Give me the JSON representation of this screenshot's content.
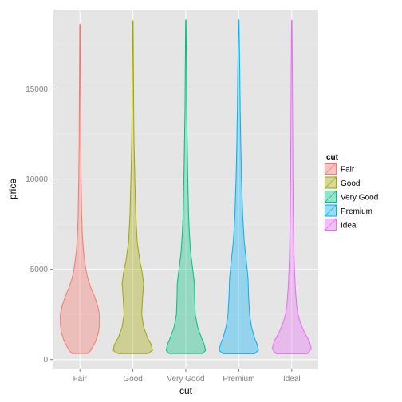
{
  "chart_data": {
    "type": "violin",
    "xlabel": "cut",
    "ylabel": "price",
    "categories": [
      "Fair",
      "Good",
      "Very Good",
      "Premium",
      "Ideal"
    ],
    "ylim": [
      -500,
      19400
    ],
    "yticks": [
      0,
      5000,
      10000,
      15000
    ],
    "grid": true,
    "legend_position": "right",
    "legend": {
      "title": "cut",
      "entries": [
        "Fair",
        "Good",
        "Very Good",
        "Premium",
        "Ideal"
      ]
    },
    "series": [
      {
        "name": "Fair",
        "color": "#F8766D",
        "price_range": [
          337,
          18574
        ],
        "density_profile": [
          [
            337,
            0.4
          ],
          [
            500,
            0.55
          ],
          [
            1000,
            0.8
          ],
          [
            1500,
            0.95
          ],
          [
            2000,
            1.0
          ],
          [
            2500,
            1.0
          ],
          [
            3000,
            0.9
          ],
          [
            3500,
            0.75
          ],
          [
            4000,
            0.55
          ],
          [
            4500,
            0.4
          ],
          [
            5000,
            0.3
          ],
          [
            6000,
            0.18
          ],
          [
            7000,
            0.12
          ],
          [
            8000,
            0.09
          ],
          [
            10000,
            0.06
          ],
          [
            12000,
            0.04
          ],
          [
            14000,
            0.03
          ],
          [
            16000,
            0.02
          ],
          [
            18574,
            0.01
          ]
        ]
      },
      {
        "name": "Good",
        "color": "#A3A500",
        "price_range": [
          327,
          18788
        ],
        "density_profile": [
          [
            327,
            0.75
          ],
          [
            500,
            1.0
          ],
          [
            800,
            0.95
          ],
          [
            1200,
            0.75
          ],
          [
            1800,
            0.55
          ],
          [
            2500,
            0.45
          ],
          [
            3500,
            0.5
          ],
          [
            4200,
            0.55
          ],
          [
            4800,
            0.48
          ],
          [
            5500,
            0.35
          ],
          [
            6500,
            0.22
          ],
          [
            8000,
            0.15
          ],
          [
            10000,
            0.1
          ],
          [
            12000,
            0.06
          ],
          [
            14000,
            0.04
          ],
          [
            16000,
            0.03
          ],
          [
            18788,
            0.01
          ]
        ]
      },
      {
        "name": "Very Good",
        "color": "#00BF7D",
        "price_range": [
          336,
          18818
        ],
        "density_profile": [
          [
            336,
            0.85
          ],
          [
            500,
            1.0
          ],
          [
            800,
            0.95
          ],
          [
            1200,
            0.8
          ],
          [
            1800,
            0.6
          ],
          [
            2500,
            0.48
          ],
          [
            3500,
            0.45
          ],
          [
            4200,
            0.44
          ],
          [
            5000,
            0.35
          ],
          [
            6000,
            0.24
          ],
          [
            7000,
            0.18
          ],
          [
            8000,
            0.14
          ],
          [
            10000,
            0.1
          ],
          [
            12000,
            0.07
          ],
          [
            14000,
            0.04
          ],
          [
            16000,
            0.03
          ],
          [
            18818,
            0.01
          ]
        ]
      },
      {
        "name": "Premium",
        "color": "#00B0F6",
        "price_range": [
          326,
          18823
        ],
        "density_profile": [
          [
            326,
            0.8
          ],
          [
            500,
            1.0
          ],
          [
            800,
            0.95
          ],
          [
            1200,
            0.8
          ],
          [
            1800,
            0.65
          ],
          [
            2500,
            0.55
          ],
          [
            3500,
            0.5
          ],
          [
            4500,
            0.47
          ],
          [
            5500,
            0.38
          ],
          [
            6500,
            0.28
          ],
          [
            8000,
            0.2
          ],
          [
            10000,
            0.14
          ],
          [
            12000,
            0.1
          ],
          [
            14000,
            0.07
          ],
          [
            16000,
            0.05
          ],
          [
            18823,
            0.01
          ]
        ]
      },
      {
        "name": "Ideal",
        "color": "#E76BF3",
        "price_range": [
          326,
          18806
        ],
        "density_profile": [
          [
            326,
            0.8
          ],
          [
            600,
            1.0
          ],
          [
            1000,
            0.9
          ],
          [
            1500,
            0.65
          ],
          [
            2000,
            0.45
          ],
          [
            2500,
            0.32
          ],
          [
            3000,
            0.25
          ],
          [
            4000,
            0.18
          ],
          [
            5000,
            0.14
          ],
          [
            6000,
            0.11
          ],
          [
            8000,
            0.08
          ],
          [
            10000,
            0.06
          ],
          [
            12000,
            0.05
          ],
          [
            14000,
            0.04
          ],
          [
            16000,
            0.03
          ],
          [
            18806,
            0.01
          ]
        ]
      }
    ]
  }
}
